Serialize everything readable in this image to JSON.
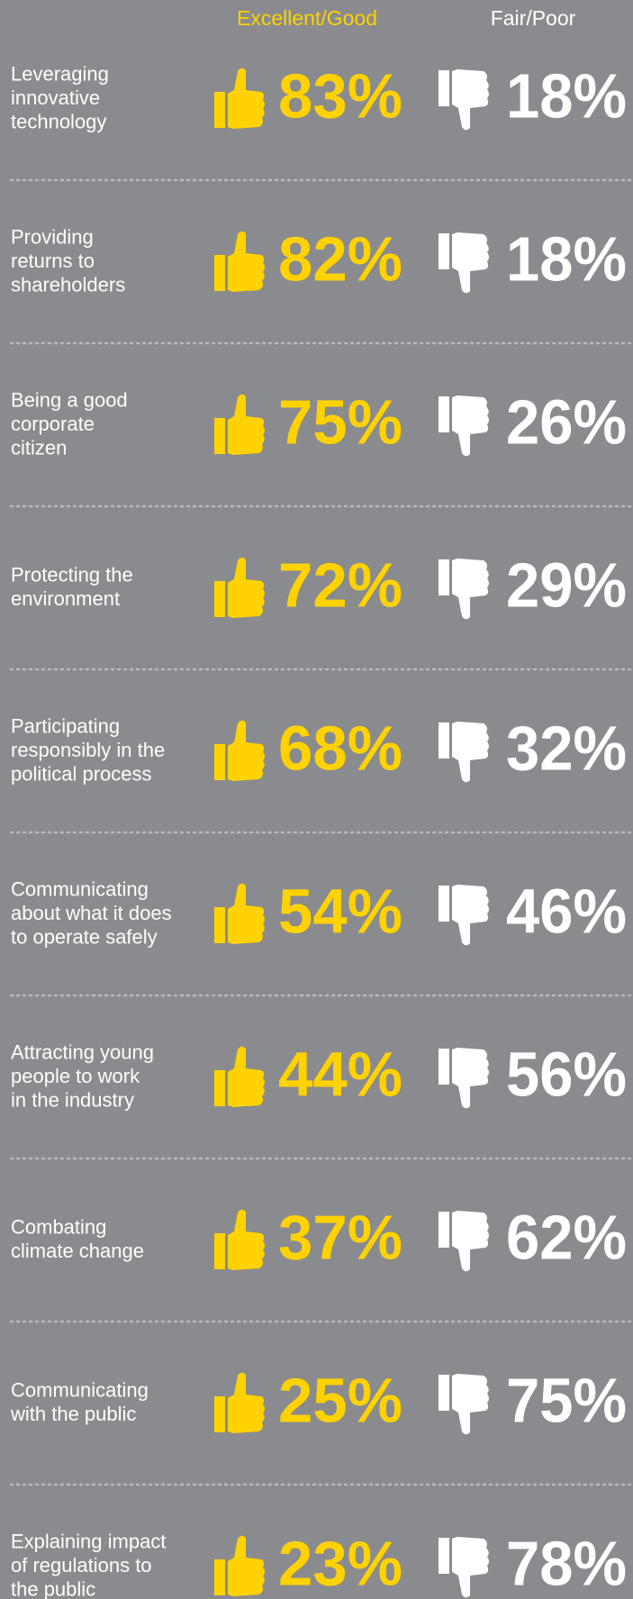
{
  "header": {
    "good": "Excellent/Good",
    "poor": "Fair/Poor"
  },
  "rows": [
    {
      "label": [
        "Leveraging",
        "innovative",
        "technology"
      ],
      "good": "83%",
      "poor": "18%"
    },
    {
      "label": [
        "Providing",
        "returns to",
        "shareholders"
      ],
      "good": "82%",
      "poor": "18%"
    },
    {
      "label": [
        "Being a good",
        "corporate",
        "citizen"
      ],
      "good": "75%",
      "poor": "26%"
    },
    {
      "label": [
        "Protecting the",
        "environment"
      ],
      "good": "72%",
      "poor": "29%"
    },
    {
      "label": [
        "Participating",
        "responsibly in the",
        "political process"
      ],
      "good": "68%",
      "poor": "32%"
    },
    {
      "label": [
        "Communicating",
        "about what it does",
        "to operate safely"
      ],
      "good": "54%",
      "poor": "46%"
    },
    {
      "label": [
        "Attracting young",
        "people to work",
        "in the industry"
      ],
      "good": "44%",
      "poor": "56%"
    },
    {
      "label": [
        "Combating",
        "climate change"
      ],
      "good": "37%",
      "poor": "62%"
    },
    {
      "label": [
        "Communicating",
        "with the public"
      ],
      "good": "25%",
      "poor": "75%"
    },
    {
      "label": [
        "Explaining impact",
        "of regulations to",
        "the public"
      ],
      "good": "23%",
      "poor": "78%"
    }
  ]
}
